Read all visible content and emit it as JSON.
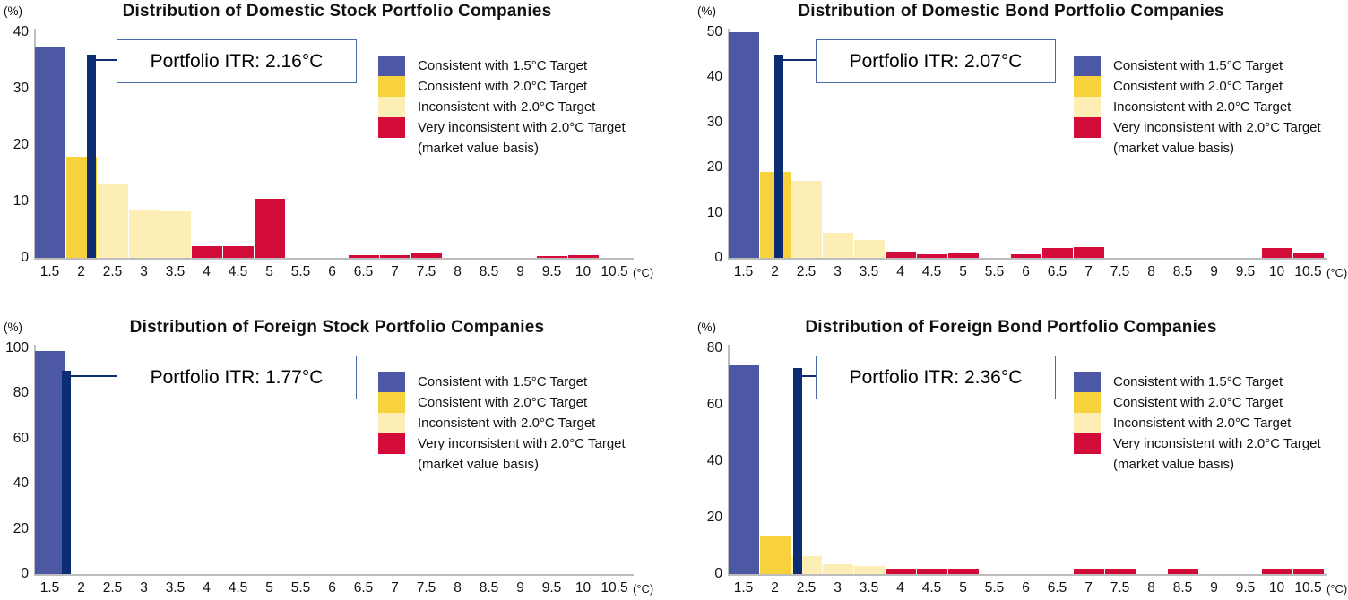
{
  "page": {
    "background": "#ffffff"
  },
  "axis": {
    "y_unit_label": "(%)",
    "x_unit_label": "(°C)",
    "categories": [
      "1.5",
      "2",
      "2.5",
      "3",
      "3.5",
      "4",
      "4.5",
      "5",
      "5.5",
      "6",
      "6.5",
      "7",
      "7.5",
      "8",
      "8.5",
      "9",
      "9.5",
      "10",
      "10.5"
    ],
    "bar_legend_index": [
      0,
      1,
      2,
      2,
      2,
      3,
      3,
      3,
      3,
      3,
      3,
      3,
      3,
      3,
      3,
      3,
      3,
      3,
      3
    ]
  },
  "colors": {
    "consistent_15": "#4d58a4",
    "consistent_20": "#f8d23c",
    "inconsistent_20": "#fceeb5",
    "very_inconsistent_20": "#d20b39",
    "itr_marker": "#0d2d72",
    "itr_box_border": "#4a69ad",
    "axis_line": "#bdbdbd"
  },
  "legend": {
    "items": [
      {
        "label": "Consistent with 1.5°C Target",
        "color": "#4d58a4"
      },
      {
        "label": "Consistent with 2.0°C Target",
        "color": "#f8d23c"
      },
      {
        "label": "Inconsistent with 2.0°C Target",
        "color": "#fceeb5"
      },
      {
        "label": "Very inconsistent with 2.0°C Target",
        "color": "#d20b39"
      }
    ],
    "note": "(market value basis)"
  },
  "chart_data": [
    {
      "type": "bar",
      "title": "Distribution of Domestic Stock Portfolio Companies",
      "itr_label": "Portfolio ITR: 2.16°C",
      "itr_value": 2.16,
      "itr_marker_height": 36,
      "ylabel": "(%)",
      "xlabel": "(°C)",
      "ylim": [
        0,
        40
      ],
      "yticks": [
        0,
        10,
        20,
        30,
        40
      ],
      "categories": [
        "1.5",
        "2",
        "2.5",
        "3",
        "3.5",
        "4",
        "4.5",
        "5",
        "5.5",
        "6",
        "6.5",
        "7",
        "7.5",
        "8",
        "8.5",
        "9",
        "9.5",
        "10",
        "10.5"
      ],
      "values": [
        37.5,
        18,
        13,
        8.5,
        8.3,
        2,
        2,
        10.5,
        0,
        0,
        0.5,
        0.5,
        0.9,
        0,
        0,
        0,
        0.3,
        0.5,
        0
      ]
    },
    {
      "type": "bar",
      "title": "Distribution of Domestic Bond Portfolio Companies",
      "itr_label": "Portfolio ITR: 2.07°C",
      "itr_value": 2.07,
      "itr_marker_height": 45,
      "ylabel": "(%)",
      "xlabel": "(°C)",
      "ylim": [
        0,
        50
      ],
      "yticks": [
        0,
        10,
        20,
        30,
        40,
        50
      ],
      "categories": [
        "1.5",
        "2",
        "2.5",
        "3",
        "3.5",
        "4",
        "4.5",
        "5",
        "5.5",
        "6",
        "6.5",
        "7",
        "7.5",
        "8",
        "8.5",
        "9",
        "9.5",
        "10",
        "10.5"
      ],
      "values": [
        50,
        19,
        17,
        5.5,
        4,
        1.3,
        0.7,
        1,
        0,
        0.8,
        2.2,
        2.4,
        0,
        0,
        0,
        0,
        0,
        2.2,
        1.2
      ]
    },
    {
      "type": "bar",
      "title": "Distribution of Foreign Stock Portfolio Companies",
      "itr_label": "Portfolio ITR: 1.77°C",
      "itr_value": 1.77,
      "itr_marker_height": 90,
      "ylabel": "(%)",
      "xlabel": "(°C)",
      "ylim": [
        0,
        100
      ],
      "yticks": [
        0,
        20,
        40,
        60,
        80,
        100
      ],
      "categories": [
        "1.5",
        "2",
        "2.5",
        "3",
        "3.5",
        "4",
        "4.5",
        "5",
        "5.5",
        "6",
        "6.5",
        "7",
        "7.5",
        "8",
        "8.5",
        "9",
        "9.5",
        "10",
        "10.5"
      ],
      "values": [
        99,
        0,
        0,
        0,
        0,
        0,
        0,
        0,
        0,
        0,
        0,
        0,
        0,
        0,
        0,
        0,
        0,
        0,
        0
      ]
    },
    {
      "type": "bar",
      "title": "Distribution of Foreign Bond Portfolio Companies",
      "itr_label": "Portfolio ITR: 2.36°C",
      "itr_value": 2.36,
      "itr_marker_height": 73,
      "ylabel": "(%)",
      "xlabel": "(°C)",
      "ylim": [
        0,
        80
      ],
      "yticks": [
        0,
        20,
        40,
        60,
        80
      ],
      "categories": [
        "1.5",
        "2",
        "2.5",
        "3",
        "3.5",
        "4",
        "4.5",
        "5",
        "5.5",
        "6",
        "6.5",
        "7",
        "7.5",
        "8",
        "8.5",
        "9",
        "9.5",
        "10",
        "10.5"
      ],
      "values": [
        74,
        13.5,
        6.5,
        3.5,
        3,
        2,
        2,
        2,
        0,
        0,
        0,
        2,
        2,
        0,
        2,
        0,
        0,
        2,
        2
      ]
    }
  ]
}
